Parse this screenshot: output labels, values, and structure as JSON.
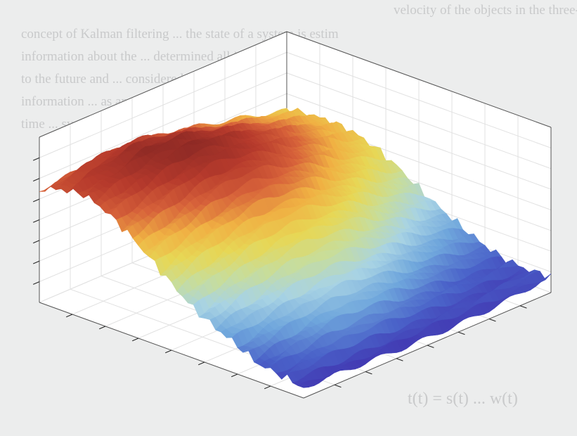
{
  "page": {
    "background_text": [
      "velocity of the objects in the three-dimensional system (Sr. Cartesian sys",
      "concept of Kalman filtering ... the state of a system is estim",
      "information about the ... determined all intermedi",
      "to the future and ... considered at mo",
      "information ... as an optim",
      "time ... system",
      "t(t) = s(t) ... w(t)"
    ]
  },
  "colors": {
    "page_background": "#eceded",
    "axes_background": "#ffffff",
    "grid": "#e1e1e1",
    "axes_edge": "#262626",
    "colormap": [
      "#3e26a8",
      "#4a62c9",
      "#6fa6dc",
      "#a8d3e4",
      "#c8dd9a",
      "#e7d755",
      "#f0b043",
      "#d7623a",
      "#b63a2c",
      "#8f2a25"
    ]
  },
  "chart_data": {
    "type": "surface",
    "title": "",
    "xlabel": "",
    "ylabel": "",
    "zlabel": "",
    "view": "3d-isometric",
    "colormap": "parula-like (blue → cyan → yellow → red)",
    "grid": true,
    "tick_labels": false,
    "x_ticks": 8,
    "y_ticks": 8,
    "z_ticks": 8,
    "x": [
      0,
      1,
      2,
      3,
      4,
      5,
      6,
      7,
      8,
      9,
      10,
      11,
      12
    ],
    "y": [
      0,
      1,
      2,
      3,
      4,
      5,
      6,
      7,
      8,
      9,
      10,
      11,
      12
    ],
    "z_range": [
      0,
      1
    ],
    "z_description": "rough ridge rising from low (blue) at x=0 to high (red) at x=12, valley at y=0 and y=12 edges",
    "z": [
      [
        0.05,
        0.08,
        0.1,
        0.18,
        0.25,
        0.33,
        0.45,
        0.58,
        0.7,
        0.8,
        0.86,
        0.84,
        0.78
      ],
      [
        0.04,
        0.1,
        0.14,
        0.22,
        0.3,
        0.4,
        0.52,
        0.64,
        0.76,
        0.86,
        0.9,
        0.88,
        0.8
      ],
      [
        0.03,
        0.12,
        0.18,
        0.26,
        0.35,
        0.46,
        0.58,
        0.7,
        0.82,
        0.92,
        0.95,
        0.9,
        0.82
      ],
      [
        0.02,
        0.14,
        0.22,
        0.3,
        0.4,
        0.52,
        0.64,
        0.76,
        0.88,
        0.97,
        0.99,
        0.93,
        0.84
      ],
      [
        0.02,
        0.14,
        0.24,
        0.33,
        0.44,
        0.56,
        0.68,
        0.8,
        0.92,
        1.0,
        0.98,
        0.92,
        0.84
      ],
      [
        0.02,
        0.13,
        0.24,
        0.34,
        0.46,
        0.58,
        0.7,
        0.82,
        0.92,
        0.98,
        0.96,
        0.9,
        0.82
      ],
      [
        0.03,
        0.12,
        0.22,
        0.33,
        0.45,
        0.57,
        0.69,
        0.8,
        0.89,
        0.94,
        0.92,
        0.86,
        0.79
      ],
      [
        0.04,
        0.1,
        0.19,
        0.3,
        0.42,
        0.54,
        0.66,
        0.76,
        0.85,
        0.89,
        0.88,
        0.82,
        0.76
      ],
      [
        0.05,
        0.09,
        0.16,
        0.26,
        0.38,
        0.5,
        0.61,
        0.71,
        0.79,
        0.84,
        0.83,
        0.78,
        0.72
      ],
      [
        0.06,
        0.08,
        0.13,
        0.22,
        0.33,
        0.44,
        0.55,
        0.65,
        0.73,
        0.78,
        0.78,
        0.74,
        0.69
      ],
      [
        0.07,
        0.07,
        0.11,
        0.19,
        0.28,
        0.38,
        0.49,
        0.59,
        0.67,
        0.72,
        0.73,
        0.7,
        0.66
      ],
      [
        0.08,
        0.07,
        0.1,
        0.16,
        0.24,
        0.33,
        0.43,
        0.53,
        0.61,
        0.66,
        0.68,
        0.66,
        0.63
      ],
      [
        0.09,
        0.08,
        0.09,
        0.14,
        0.21,
        0.29,
        0.38,
        0.48,
        0.56,
        0.61,
        0.63,
        0.62,
        0.6
      ]
    ]
  }
}
